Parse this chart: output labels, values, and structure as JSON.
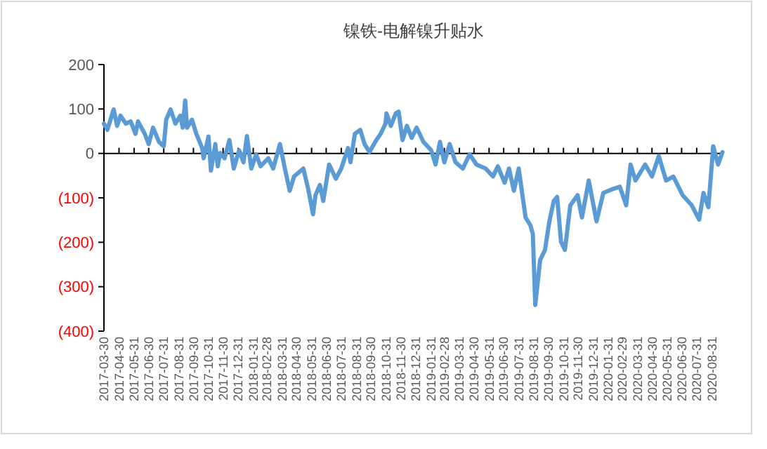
{
  "chart_data": {
    "type": "line",
    "title": "镍铁-电解镍升贴水",
    "x": [
      "2017-03-30",
      "2017-04-06",
      "2017-04-19",
      "2017-04-26",
      "2017-05-03",
      "2017-05-14",
      "2017-05-24",
      "2017-06-03",
      "2017-06-08",
      "2017-06-22",
      "2017-06-30",
      "2017-07-09",
      "2017-07-21",
      "2017-07-31",
      "2017-08-05",
      "2017-08-14",
      "2017-08-24",
      "2017-09-03",
      "2017-09-08",
      "2017-09-13",
      "2017-09-17",
      "2017-09-27",
      "2017-10-06",
      "2017-10-18",
      "2017-10-21",
      "2017-10-31",
      "2017-11-05",
      "2017-11-14",
      "2017-11-19",
      "2017-11-24",
      "2017-12-03",
      "2017-12-13",
      "2017-12-22",
      "2018-01-02",
      "2018-01-11",
      "2018-01-18",
      "2018-01-27",
      "2018-02-06",
      "2018-02-15",
      "2018-03-03",
      "2018-03-13",
      "2018-03-27",
      "2018-04-06",
      "2018-04-16",
      "2018-04-25",
      "2018-05-14",
      "2018-05-24",
      "2018-06-03",
      "2018-06-08",
      "2018-06-17",
      "2018-06-24",
      "2018-07-06",
      "2018-07-20",
      "2018-07-31",
      "2018-08-14",
      "2018-08-19",
      "2018-08-28",
      "2018-09-08",
      "2018-09-17",
      "2018-09-27",
      "2018-10-11",
      "2018-10-20",
      "2018-10-30",
      "2018-11-01",
      "2018-11-10",
      "2018-11-20",
      "2018-11-26",
      "2018-12-04",
      "2018-12-13",
      "2018-12-23",
      "2019-01-02",
      "2019-01-16",
      "2019-02-01",
      "2019-02-10",
      "2019-02-19",
      "2019-02-28",
      "2019-03-11",
      "2019-03-23",
      "2019-04-07",
      "2019-04-21",
      "2019-05-05",
      "2019-05-24",
      "2019-06-08",
      "2019-06-18",
      "2019-07-02",
      "2019-07-11",
      "2019-07-21",
      "2019-07-31",
      "2019-08-14",
      "2019-08-24",
      "2019-08-29",
      "2019-09-03",
      "2019-09-13",
      "2019-09-23",
      "2019-10-02",
      "2019-10-11",
      "2019-10-18",
      "2019-10-26",
      "2019-11-03",
      "2019-11-14",
      "2019-11-29",
      "2019-12-08",
      "2019-12-22",
      "2020-01-07",
      "2020-01-21",
      "2020-02-10",
      "2020-02-24",
      "2020-03-08",
      "2020-03-17",
      "2020-03-27",
      "2020-04-16",
      "2020-04-30",
      "2020-05-14",
      "2020-05-29",
      "2020-06-13",
      "2020-07-02",
      "2020-07-21",
      "2020-08-05",
      "2020-08-14",
      "2020-08-24",
      "2020-09-03",
      "2020-09-13",
      "2020-09-22"
    ],
    "series": [
      {
        "color": "#5b9bd5",
        "values": [
          67,
          53,
          99,
          62,
          85,
          67,
          72,
          44,
          72,
          44,
          21,
          58,
          26,
          16,
          76,
          99,
          67,
          85,
          58,
          119,
          58,
          76,
          44,
          12,
          -11,
          38,
          -39,
          21,
          -29,
          1,
          -11,
          30,
          -34,
          7,
          -20,
          39,
          -34,
          -2,
          -29,
          -11,
          -34,
          21,
          -34,
          -84,
          -52,
          -34,
          -80,
          -137,
          -94,
          -71,
          -107,
          -25,
          -57,
          -34,
          12,
          -20,
          44,
          53,
          21,
          3,
          30,
          44,
          67,
          90,
          62,
          90,
          94,
          30,
          62,
          35,
          58,
          26,
          7,
          -25,
          26,
          -20,
          21,
          -20,
          -34,
          -2,
          -25,
          -34,
          -52,
          -29,
          -66,
          -34,
          -84,
          -34,
          -144,
          -162,
          -181,
          -341,
          -240,
          -217,
          -153,
          -107,
          -98,
          -199,
          -217,
          -117,
          -94,
          -144,
          -61,
          -153,
          -89,
          -80,
          -75,
          -117,
          -25,
          -61,
          -25,
          -52,
          -6,
          -61,
          -52,
          -94,
          -117,
          -149,
          -89,
          -121,
          16,
          -25,
          3
        ]
      }
    ],
    "xlim": [
      "2017-03-30",
      "2020-09-24"
    ],
    "xticks": [
      {
        "value": "2017-03-30",
        "label": "2017-03-30"
      },
      {
        "value": "2017-04-30",
        "label": "2017-04-30"
      },
      {
        "value": "2017-05-31",
        "label": "2017-05-31"
      },
      {
        "value": "2017-06-30",
        "label": "2017-06-30"
      },
      {
        "value": "2017-07-31",
        "label": "2017-07-31"
      },
      {
        "value": "2017-08-31",
        "label": "2017-08-31"
      },
      {
        "value": "2017-09-30",
        "label": "2017-09-30"
      },
      {
        "value": "2017-10-31",
        "label": "2017-10-31"
      },
      {
        "value": "2017-11-30",
        "label": "2017-11-30"
      },
      {
        "value": "2017-12-31",
        "label": "2017-12-31"
      },
      {
        "value": "2018-01-31",
        "label": "2018-01-31"
      },
      {
        "value": "2018-02-28",
        "label": "2018-02-28"
      },
      {
        "value": "2018-03-31",
        "label": "2018-03-31"
      },
      {
        "value": "2018-04-30",
        "label": "2018-04-30"
      },
      {
        "value": "2018-05-31",
        "label": "2018-05-31"
      },
      {
        "value": "2018-06-30",
        "label": "2018-06-30"
      },
      {
        "value": "2018-07-31",
        "label": "2018-07-31"
      },
      {
        "value": "2018-08-31",
        "label": "2018-08-31"
      },
      {
        "value": "2018-09-30",
        "label": "2018-09-30"
      },
      {
        "value": "2018-10-31",
        "label": "2018-10-31"
      },
      {
        "value": "2018-11-30",
        "label": "2018-11-30"
      },
      {
        "value": "2018-12-31",
        "label": "2018-12-31"
      },
      {
        "value": "2019-01-31",
        "label": "2019-01-31"
      },
      {
        "value": "2019-02-28",
        "label": "2019-02-28"
      },
      {
        "value": "2019-03-31",
        "label": "2019-03-31"
      },
      {
        "value": "2019-04-30",
        "label": "2019-04-30"
      },
      {
        "value": "2019-05-31",
        "label": "2019-05-31"
      },
      {
        "value": "2019-06-30",
        "label": "2019-06-30"
      },
      {
        "value": "2019-07-31",
        "label": "2019-07-31"
      },
      {
        "value": "2019-08-31",
        "label": "2019-08-31"
      },
      {
        "value": "2019-09-30",
        "label": "2019-09-30"
      },
      {
        "value": "2019-10-31",
        "label": "2019-10-31"
      },
      {
        "value": "2019-11-30",
        "label": "2019-11-30"
      },
      {
        "value": "2019-12-31",
        "label": "2019-12-31"
      },
      {
        "value": "2020-01-31",
        "label": "2020-01-31"
      },
      {
        "value": "2020-02-29",
        "label": "2020-02-29"
      },
      {
        "value": "2020-03-31",
        "label": "2020-03-31"
      },
      {
        "value": "2020-04-30",
        "label": "2020-04-30"
      },
      {
        "value": "2020-05-31",
        "label": "2020-05-31"
      },
      {
        "value": "2020-06-30",
        "label": "2020-06-30"
      },
      {
        "value": "2020-07-31",
        "label": "2020-07-31"
      },
      {
        "value": "2020-08-31",
        "label": "2020-08-31"
      }
    ],
    "ylim": [
      -400,
      200
    ],
    "yticks": [
      {
        "value": 200,
        "label": "200"
      },
      {
        "value": 100,
        "label": "100"
      },
      {
        "value": 0,
        "label": "0"
      },
      {
        "value": -100,
        "label": "(100)"
      },
      {
        "value": -200,
        "label": "(200)"
      },
      {
        "value": -300,
        "label": "(300)"
      },
      {
        "value": -400,
        "label": "(400)"
      }
    ],
    "marker": "none",
    "line_style": "solid"
  }
}
